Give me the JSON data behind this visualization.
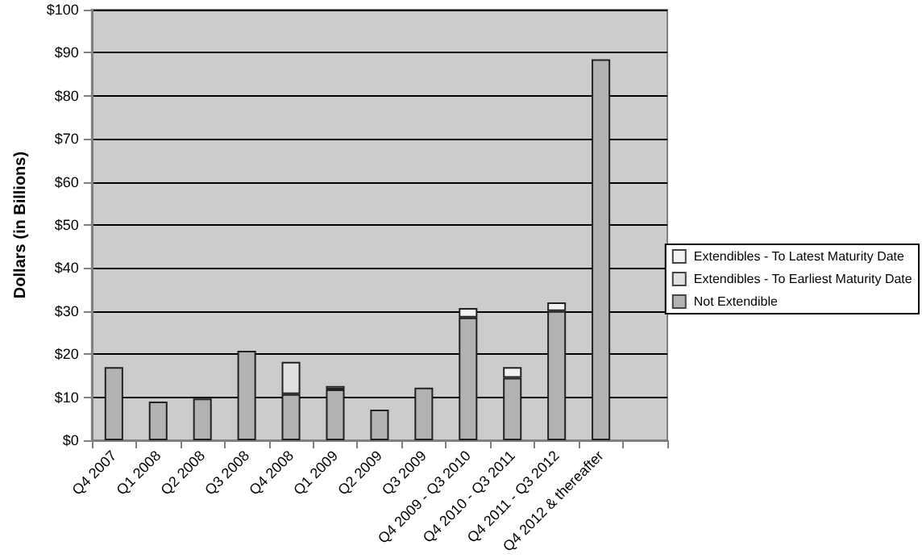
{
  "chart_data": {
    "type": "bar",
    "stacked": true,
    "ylabel": "Dollars (in Billions)",
    "categories": [
      "Q4 2007",
      "Q1 2008",
      "Q2 2008",
      "Q3 2008",
      "Q4 2008",
      "Q1 2009",
      "Q2 2009",
      "Q3 2009",
      "Q4 2009 - Q3 2010",
      "Q4 2010 - Q3 2011",
      "Q4 2011 - Q3 2012",
      "Q4 2012 & thereafter",
      null
    ],
    "series": [
      {
        "name": "Not Extendible",
        "color": "#b2b2b2",
        "values": [
          17,
          9,
          9.7,
          20.8,
          10.7,
          11.8,
          7.1,
          12.2,
          28.5,
          14.5,
          30,
          88.5,
          null
        ]
      },
      {
        "name": "Extendibles - To Earliest Maturity Date",
        "color": "#e0e0e0",
        "values": [
          null,
          null,
          null,
          null,
          7.5,
          null,
          null,
          null,
          null,
          null,
          null,
          null,
          null
        ]
      },
      {
        "name": "Extendibles - To Latest Maturity Date",
        "color": "#f2f2f2",
        "values": [
          null,
          null,
          null,
          null,
          null,
          0.8,
          null,
          null,
          2.2,
          2.5,
          2,
          null,
          null
        ]
      }
    ],
    "ylim": [
      0,
      100
    ],
    "yticks": [
      {
        "value": 0,
        "label": "$0"
      },
      {
        "value": 10,
        "label": "$10"
      },
      {
        "value": 20,
        "label": "$20"
      },
      {
        "value": 30,
        "label": "$30"
      },
      {
        "value": 40,
        "label": "$40"
      },
      {
        "value": 50,
        "label": "$50"
      },
      {
        "value": 60,
        "label": "$60"
      },
      {
        "value": 70,
        "label": "$70"
      },
      {
        "value": 80,
        "label": "$80"
      },
      {
        "value": 90,
        "label": "$90"
      },
      {
        "value": 100,
        "label": "$100"
      }
    ],
    "grid": "y",
    "legend": "right"
  }
}
